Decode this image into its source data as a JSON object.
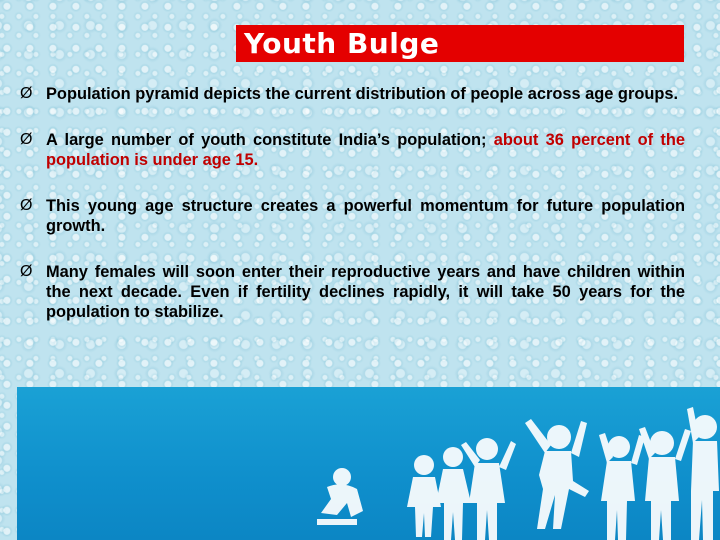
{
  "slide": {
    "title": "Youth Bulge",
    "bullets": [
      {
        "text": "Population pyramid depicts the current distribution of people across age groups."
      },
      {
        "text": "A large number of youth constitute India’s population; ",
        "highlight": "about 36 percent of the population is under age 15."
      },
      {
        "text": "This young age structure creates a powerful momentum for future population growth."
      },
      {
        "text": "Many females will soon enter their reproductive years and have children within the next decade. Even if fertility declines rapidly, it will take 50 years for the population to stabilize."
      }
    ],
    "bullet_icon": "arrow-bullet-icon",
    "colors": {
      "title_bg": "#e40000",
      "highlight": "#c00000",
      "banner": "#1aa1d5"
    },
    "banner_image": "children-silhouettes"
  }
}
